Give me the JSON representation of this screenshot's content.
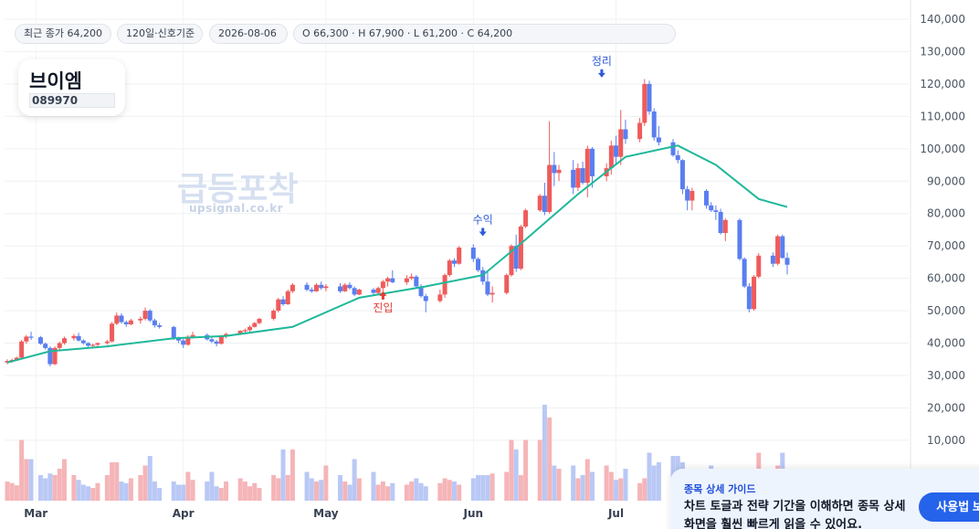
{
  "info_bar": {
    "last_close": "최근 종가 64,200",
    "period": "120일·신호기준",
    "date": "2026-08-06",
    "ohlc": "O 66,300 · H 67,900 · L 61,200 · C 64,200"
  },
  "stock": {
    "name": "브이엠",
    "code": "089970"
  },
  "watermark": {
    "title": "급등포착",
    "url": "upsignal.co.kr"
  },
  "signals": [
    {
      "label": "진입",
      "type": "buy",
      "x": "2026-05-13",
      "price": 56000
    },
    {
      "label": "수익",
      "type": "sell",
      "x": "2026-06-03",
      "price": 73000
    },
    {
      "label": "정리",
      "type": "sell",
      "x": "2026-06-28",
      "price": 122000
    }
  ],
  "guide": {
    "title": "종목 상세 가이드",
    "body": "차트 토글과 전략 기간을 이해하면 종목 상세 화면을 훨씬 빠르게 읽을 수 있어요.",
    "button": "사용법 보기"
  },
  "colors": {
    "up": "#ef5b5b",
    "down": "#5a7ef0",
    "ma": "#1fb89a",
    "volume_up": "#f5b5b8",
    "volume_down": "#b9c8f5"
  },
  "chart_data": {
    "type": "candlestick",
    "ylim": [
      0,
      140000
    ],
    "y_ticks": [
      "140,000",
      "130,000",
      "120,000",
      "110,000",
      "100,000",
      "90,000",
      "80,000",
      "70,000",
      "60,000",
      "50,000",
      "40,000",
      "30,000",
      "20,000",
      "10,000"
    ],
    "x_ticks": [
      "Mar",
      "Apr",
      "May",
      "Jun",
      "Jul"
    ],
    "x_tick_dates": [
      "2026-03-01",
      "2026-04-01",
      "2026-05-01",
      "2026-06-01",
      "2026-07-01"
    ],
    "candles": [
      [
        "2026-02-23",
        34000,
        35000,
        33500,
        34500,
        6000
      ],
      [
        "2026-02-24",
        34500,
        35200,
        34000,
        34800,
        5500
      ],
      [
        "2026-02-25",
        34800,
        35800,
        34500,
        35500,
        4800
      ],
      [
        "2026-02-26",
        35500,
        41000,
        35200,
        40500,
        19000
      ],
      [
        "2026-02-27",
        40500,
        42500,
        39800,
        42000,
        13000
      ],
      [
        "2026-02-28",
        42000,
        43500,
        41000,
        41800,
        13000
      ],
      [
        "2026-03-02",
        41800,
        42200,
        39500,
        39800,
        8000
      ],
      [
        "2026-03-03",
        39800,
        40200,
        38000,
        38500,
        7000
      ],
      [
        "2026-03-04",
        38500,
        39000,
        32800,
        33500,
        8500
      ],
      [
        "2026-03-05",
        33500,
        39000,
        33200,
        38500,
        8000
      ],
      [
        "2026-03-06",
        38500,
        40500,
        37800,
        40000,
        10000
      ],
      [
        "2026-03-07",
        40000,
        42000,
        39500,
        41500,
        13000
      ],
      [
        "2026-03-09",
        41500,
        42800,
        40800,
        42200,
        8000
      ],
      [
        "2026-03-10",
        42200,
        43200,
        40500,
        40800,
        6500
      ],
      [
        "2026-03-11",
        40800,
        41200,
        39500,
        40000,
        5000
      ],
      [
        "2026-03-12",
        40000,
        40300,
        38800,
        39200,
        4500
      ],
      [
        "2026-03-13",
        39200,
        39800,
        38500,
        39500,
        4000
      ],
      [
        "2026-03-14",
        39500,
        40200,
        39000,
        40000,
        5500
      ],
      [
        "2026-03-16",
        40000,
        41000,
        39500,
        40500,
        8000
      ],
      [
        "2026-03-17",
        40500,
        46500,
        40200,
        46000,
        12000
      ],
      [
        "2026-03-18",
        46000,
        49500,
        45500,
        48500,
        12000
      ],
      [
        "2026-03-19",
        48500,
        49200,
        46000,
        46500,
        6000
      ],
      [
        "2026-03-20",
        46500,
        47000,
        45000,
        45800,
        5500
      ],
      [
        "2026-03-21",
        45800,
        47500,
        45500,
        47000,
        7000
      ],
      [
        "2026-03-23",
        47000,
        48200,
        46000,
        47500,
        8000
      ],
      [
        "2026-03-24",
        47500,
        51000,
        47000,
        50000,
        11000
      ],
      [
        "2026-03-25",
        50000,
        50500,
        46500,
        47000,
        14000
      ],
      [
        "2026-03-26",
        47000,
        47500,
        44800,
        45500,
        6000
      ],
      [
        "2026-03-27",
        45500,
        46200,
        44500,
        45000,
        4000
      ],
      [
        "2026-03-30",
        45000,
        45300,
        41000,
        41500,
        6000
      ],
      [
        "2026-03-31",
        41500,
        42000,
        40000,
        40800,
        5000
      ],
      [
        "2026-04-01",
        40800,
        41300,
        38500,
        39500,
        5000
      ],
      [
        "2026-04-02",
        39500,
        42500,
        39200,
        42000,
        9000
      ],
      [
        "2026-04-03",
        42000,
        43500,
        41500,
        42500,
        6500
      ],
      [
        "2026-04-06",
        42500,
        43000,
        40800,
        41200,
        6000
      ],
      [
        "2026-04-07",
        41200,
        41800,
        40000,
        40500,
        9000
      ],
      [
        "2026-04-08",
        40500,
        41000,
        39000,
        39800,
        4500
      ],
      [
        "2026-04-09",
        39800,
        42500,
        39500,
        42000,
        4000
      ],
      [
        "2026-04-10",
        42000,
        43200,
        41500,
        42800,
        6000
      ],
      [
        "2026-04-13",
        42800,
        44000,
        42500,
        43800,
        7000
      ],
      [
        "2026-04-14",
        43800,
        44500,
        43000,
        44000,
        6000
      ],
      [
        "2026-04-15",
        44000,
        45500,
        43500,
        45000,
        4500
      ],
      [
        "2026-04-16",
        45000,
        46500,
        44800,
        46200,
        5500
      ],
      [
        "2026-04-17",
        46200,
        47800,
        45800,
        47500,
        4000
      ],
      [
        "2026-04-20",
        47500,
        50500,
        47000,
        50000,
        8000
      ],
      [
        "2026-04-21",
        50000,
        54000,
        49500,
        53500,
        7000
      ],
      [
        "2026-04-22",
        53500,
        54500,
        51500,
        52000,
        16000
      ],
      [
        "2026-04-23",
        52000,
        56500,
        51800,
        56000,
        8000
      ],
      [
        "2026-04-24",
        56000,
        58500,
        55500,
        58000,
        16000
      ],
      [
        "2026-04-27",
        58000,
        58800,
        56000,
        56500,
        9000
      ],
      [
        "2026-04-28",
        56500,
        57200,
        55500,
        56000,
        7000
      ],
      [
        "2026-04-29",
        56000,
        58500,
        55800,
        58000,
        6000
      ],
      [
        "2026-04-30",
        58000,
        59000,
        56500,
        57000,
        6500
      ],
      [
        "2026-05-01",
        57000,
        58200,
        56000,
        57500,
        11000
      ],
      [
        "2026-05-04",
        57500,
        58500,
        55500,
        56000,
        8000
      ],
      [
        "2026-05-05",
        56000,
        58500,
        55800,
        58000,
        6000
      ],
      [
        "2026-05-06",
        58000,
        58800,
        56500,
        57000,
        5000
      ],
      [
        "2026-05-07",
        57000,
        57500,
        54500,
        55000,
        13000
      ],
      [
        "2026-05-08",
        55000,
        56800,
        54800,
        56500,
        7000
      ],
      [
        "2026-05-11",
        56500,
        57000,
        55000,
        55500,
        9000
      ],
      [
        "2026-05-12",
        55500,
        57500,
        55200,
        57000,
        5000
      ],
      [
        "2026-05-13",
        57000,
        59500,
        55000,
        59000,
        6000
      ],
      [
        "2026-05-14",
        59000,
        60500,
        57500,
        60000,
        4500
      ],
      [
        "2026-05-15",
        60000,
        62500,
        58500,
        58800,
        5500
      ],
      [
        "2026-05-18",
        58800,
        61000,
        58000,
        60000,
        5000
      ],
      [
        "2026-05-19",
        60000,
        61500,
        59500,
        60500,
        6000
      ],
      [
        "2026-05-20",
        60500,
        61000,
        57000,
        57500,
        7000
      ],
      [
        "2026-05-21",
        57500,
        58200,
        54000,
        54500,
        5500
      ],
      [
        "2026-05-22",
        54500,
        55200,
        49500,
        53000,
        4500
      ],
      [
        "2026-05-25",
        53000,
        56500,
        52500,
        55000,
        5500
      ],
      [
        "2026-05-26",
        55000,
        61500,
        54000,
        61000,
        7000
      ],
      [
        "2026-05-27",
        61000,
        66000,
        60500,
        65500,
        6500
      ],
      [
        "2026-05-28",
        65500,
        66200,
        63500,
        64500,
        6000
      ],
      [
        "2026-05-29",
        64500,
        70000,
        64200,
        69500,
        5000
      ],
      [
        "2026-06-01",
        69500,
        70500,
        65000,
        66000,
        7000
      ],
      [
        "2026-06-02",
        66000,
        66500,
        62000,
        62500,
        8000
      ],
      [
        "2026-06-03",
        62500,
        63500,
        58000,
        59000,
        8000
      ],
      [
        "2026-06-04",
        59000,
        62000,
        54500,
        55000,
        8000
      ],
      [
        "2026-06-05",
        55000,
        57500,
        52500,
        55500,
        8500
      ],
      [
        "2026-06-08",
        55500,
        61500,
        55000,
        61000,
        9000
      ],
      [
        "2026-06-09",
        61000,
        70500,
        60500,
        70000,
        19000
      ],
      [
        "2026-06-10",
        70000,
        73500,
        62000,
        63000,
        16000
      ],
      [
        "2026-06-11",
        63000,
        76500,
        62500,
        76000,
        8000
      ],
      [
        "2026-06-12",
        76000,
        81500,
        75500,
        81000,
        19000
      ],
      [
        "2026-06-15",
        81000,
        86000,
        80500,
        85500,
        19000
      ],
      [
        "2026-06-16",
        85500,
        89500,
        79500,
        80500,
        30000
      ],
      [
        "2026-06-17",
        80500,
        108500,
        80000,
        95000,
        26000
      ],
      [
        "2026-06-18",
        95000,
        99000,
        88500,
        92500,
        11000
      ],
      [
        "2026-06-19",
        92500,
        95000,
        90000,
        93500,
        10000
      ],
      [
        "2026-06-22",
        93500,
        96500,
        86000,
        88000,
        11000
      ],
      [
        "2026-06-23",
        88000,
        95500,
        87000,
        94000,
        7000
      ],
      [
        "2026-06-24",
        94000,
        96000,
        89000,
        89500,
        8000
      ],
      [
        "2026-06-25",
        89500,
        101000,
        85000,
        100000,
        13000
      ],
      [
        "2026-06-26",
        100000,
        100500,
        88000,
        91500,
        9000
      ],
      [
        "2026-06-29",
        91500,
        95500,
        90000,
        94000,
        11000
      ],
      [
        "2026-06-30",
        94000,
        102500,
        92000,
        101000,
        9000
      ],
      [
        "2026-07-01",
        101000,
        104000,
        95500,
        97500,
        6500
      ],
      [
        "2026-07-02",
        97500,
        112000,
        95000,
        106000,
        7000
      ],
      [
        "2026-07-03",
        106000,
        109000,
        101500,
        103000,
        10000
      ],
      [
        "2026-07-06",
        103000,
        109500,
        102000,
        108000,
        5500
      ],
      [
        "2026-07-07",
        108000,
        121500,
        107000,
        120000,
        7000
      ],
      [
        "2026-07-08",
        120000,
        121000,
        110500,
        111500,
        15000
      ],
      [
        "2026-07-09",
        111500,
        112500,
        102500,
        103500,
        11000
      ],
      [
        "2026-07-10",
        103500,
        107000,
        101000,
        102000,
        12000
      ],
      [
        "2026-07-13",
        102000,
        103000,
        97500,
        98000,
        14000
      ],
      [
        "2026-07-14",
        98000,
        99500,
        95500,
        96500,
        14000
      ],
      [
        "2026-07-15",
        96500,
        96800,
        86000,
        87500,
        12000
      ],
      [
        "2026-07-16",
        87500,
        88500,
        81000,
        84000,
        9000
      ],
      [
        "2026-07-17",
        84000,
        88000,
        81000,
        87000,
        10000
      ],
      [
        "2026-07-20",
        87000,
        87500,
        81500,
        82500,
        9000
      ],
      [
        "2026-07-21",
        82500,
        83500,
        80500,
        81000,
        11000
      ],
      [
        "2026-07-22",
        81000,
        82500,
        78000,
        80500,
        10000
      ],
      [
        "2026-07-23",
        80500,
        81500,
        73500,
        74000,
        10000
      ],
      [
        "2026-07-24",
        74000,
        78500,
        71500,
        78000,
        9000
      ],
      [
        "2026-07-27",
        78000,
        78500,
        65500,
        66000,
        8500
      ],
      [
        "2026-07-28",
        66000,
        66500,
        57000,
        57500,
        9500
      ],
      [
        "2026-07-29",
        57500,
        58500,
        49500,
        50500,
        6500
      ],
      [
        "2026-07-30",
        50500,
        61000,
        50000,
        60500,
        10000
      ],
      [
        "2026-07-31",
        60500,
        67800,
        60000,
        67000,
        15000
      ],
      [
        "2026-08-03",
        67000,
        68000,
        63500,
        64500,
        9000
      ],
      [
        "2026-08-04",
        64500,
        73500,
        64000,
        73000,
        11000
      ],
      [
        "2026-08-05",
        73000,
        73500,
        66000,
        66300,
        15000
      ],
      [
        "2026-08-06",
        66300,
        67900,
        61200,
        64200,
        8000
      ]
    ],
    "ma": [
      {
        "x": "2026-02-23",
        "y": 34000
      },
      {
        "x": "2026-03-04",
        "y": 37500
      },
      {
        "x": "2026-03-16",
        "y": 39000
      },
      {
        "x": "2026-03-30",
        "y": 41500
      },
      {
        "x": "2026-04-10",
        "y": 42200
      },
      {
        "x": "2026-04-24",
        "y": 45000
      },
      {
        "x": "2026-05-08",
        "y": 54000
      },
      {
        "x": "2026-05-22",
        "y": 57500
      },
      {
        "x": "2026-06-03",
        "y": 61000
      },
      {
        "x": "2026-06-12",
        "y": 72000
      },
      {
        "x": "2026-06-23",
        "y": 86000
      },
      {
        "x": "2026-07-03",
        "y": 97500
      },
      {
        "x": "2026-07-14",
        "y": 101000
      },
      {
        "x": "2026-07-22",
        "y": 95000
      },
      {
        "x": "2026-07-31",
        "y": 84500
      },
      {
        "x": "2026-08-06",
        "y": 82000
      }
    ]
  }
}
